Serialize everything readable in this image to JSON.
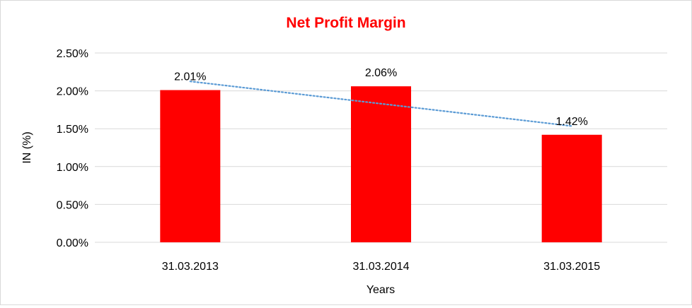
{
  "chart_data": {
    "type": "bar",
    "title": "Net Profit Margin",
    "xlabel": "Years",
    "ylabel": "IN (%)",
    "categories": [
      "31.03.2013",
      "31.03.2014",
      "31.03.2015"
    ],
    "values": [
      2.01,
      2.06,
      1.42
    ],
    "data_labels": [
      "2.01%",
      "2.06%",
      "1.42%"
    ],
    "ylim": [
      0,
      2.5
    ],
    "yticks": [
      0,
      0.5,
      1.0,
      1.5,
      2.0,
      2.5
    ],
    "ytick_labels": [
      "0.00%",
      "0.50%",
      "1.00%",
      "1.50%",
      "2.00%",
      "2.50%"
    ],
    "grid": true,
    "trendline": {
      "type": "linear",
      "style": "dotted",
      "color": "#5b9bd5"
    },
    "colors": {
      "bar": "#ff0000",
      "title": "#ff0000",
      "grid": "#d9d9d9",
      "text": "#000000"
    }
  }
}
